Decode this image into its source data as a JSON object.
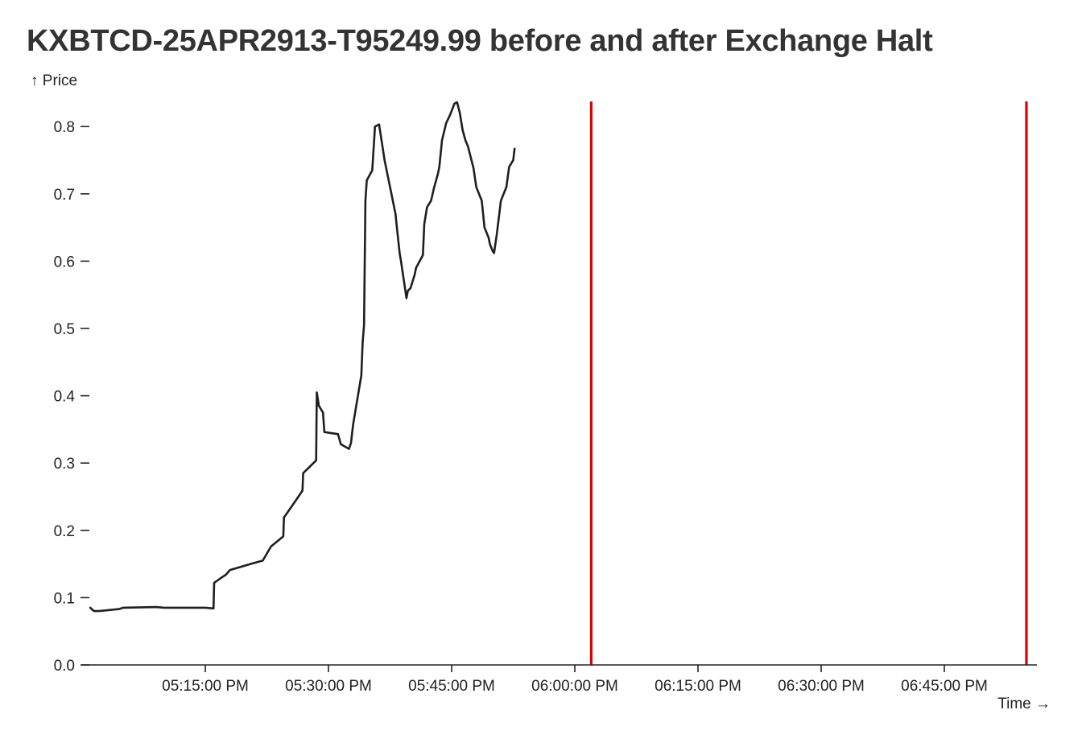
{
  "chart_data": {
    "type": "line",
    "title": "KXBTCD-25APR2913-T95249.99 before and after Exchange Halt",
    "ylabel": "↑ Price",
    "xlabel": "Time →",
    "x_domain": [
      "05:00:00 PM",
      "07:00:00 PM"
    ],
    "ylim": [
      0,
      0.84
    ],
    "y_ticks": [
      0.0,
      0.1,
      0.2,
      0.3,
      0.4,
      0.5,
      0.6,
      0.7,
      0.8
    ],
    "x_ticks": [
      "05:15:00 PM",
      "05:30:00 PM",
      "05:45:00 PM",
      "06:00:00 PM",
      "06:15:00 PM",
      "06:30:00 PM",
      "06:45:00 PM"
    ],
    "grid": false,
    "line_color": "#1e1e24",
    "halt_color": "#e00000",
    "halt_markers": [
      "06:02:00 PM",
      "06:55:00 PM"
    ],
    "series": [
      {
        "x": [
          "05:01:00 PM",
          "05:01:20 PM",
          "05:01:30 PM",
          "05:02:00 PM",
          "05:04:30 PM",
          "05:05:00 PM",
          "05:09:00 PM",
          "05:10:00 PM",
          "05:15:00 PM",
          "05:16:00 PM",
          "05:16:05 PM",
          "05:17:00 PM",
          "05:17:30 PM",
          "05:18:00 PM",
          "05:20:30 PM",
          "05:22:00 PM",
          "05:23:00 PM",
          "05:24:30 PM",
          "05:24:35 PM",
          "05:26:00 PM",
          "05:26:50 PM",
          "05:26:55 PM",
          "05:28:30 PM",
          "05:28:35 PM",
          "05:28:50 PM",
          "05:29:20 PM",
          "05:29:30 PM",
          "05:31:10 PM",
          "05:31:30 PM",
          "05:32:30 PM",
          "05:32:45 PM",
          "05:33:00 PM",
          "05:34:00 PM",
          "05:34:10 PM",
          "05:34:20 PM",
          "05:34:30 PM",
          "05:34:40 PM",
          "05:35:20 PM",
          "05:35:40 PM",
          "05:36:10 PM",
          "05:36:50 PM",
          "05:37:00 PM",
          "05:37:20 PM",
          "05:37:30 PM",
          "05:38:10 PM",
          "05:38:20 PM",
          "05:38:40 PM",
          "05:38:50 PM",
          "05:39:30 PM",
          "05:39:40 PM",
          "05:40:00 PM",
          "05:40:30 PM",
          "05:40:40 PM",
          "05:41:30 PM",
          "05:41:40 PM",
          "05:42:00 PM",
          "05:42:30 PM",
          "05:42:50 PM",
          "05:43:20 PM",
          "05:43:30 PM",
          "05:43:50 PM",
          "05:44:20 PM",
          "05:44:50 PM",
          "05:45:20 PM",
          "05:45:40 PM",
          "05:46:00 PM",
          "05:46:20 PM",
          "05:46:40 PM",
          "05:47:00 PM",
          "05:47:40 PM",
          "05:48:00 PM",
          "05:48:40 PM",
          "05:49:00 PM",
          "05:49:30 PM",
          "05:49:40 PM",
          "05:50:00 PM",
          "05:50:10 PM",
          "05:50:30 PM",
          "05:51:00 PM",
          "05:51:40 PM",
          "05:52:00 PM",
          "05:52:30 PM",
          "05:52:40 PM"
        ],
        "y": [
          0.085,
          0.081,
          0.08,
          0.08,
          0.083,
          0.085,
          0.086,
          0.085,
          0.085,
          0.084,
          0.122,
          0.13,
          0.134,
          0.141,
          0.15,
          0.155,
          0.176,
          0.191,
          0.219,
          0.244,
          0.259,
          0.285,
          0.304,
          0.405,
          0.385,
          0.375,
          0.346,
          0.343,
          0.328,
          0.321,
          0.33,
          0.357,
          0.43,
          0.48,
          0.505,
          0.69,
          0.72,
          0.735,
          0.8,
          0.803,
          0.75,
          0.74,
          0.72,
          0.71,
          0.67,
          0.65,
          0.612,
          0.6,
          0.545,
          0.556,
          0.56,
          0.58,
          0.59,
          0.609,
          0.655,
          0.68,
          0.69,
          0.708,
          0.73,
          0.74,
          0.78,
          0.805,
          0.818,
          0.834,
          0.836,
          0.82,
          0.795,
          0.78,
          0.77,
          0.738,
          0.71,
          0.69,
          0.65,
          0.635,
          0.625,
          0.615,
          0.612,
          0.64,
          0.69,
          0.71,
          0.74,
          0.75,
          0.767
        ]
      }
    ]
  }
}
